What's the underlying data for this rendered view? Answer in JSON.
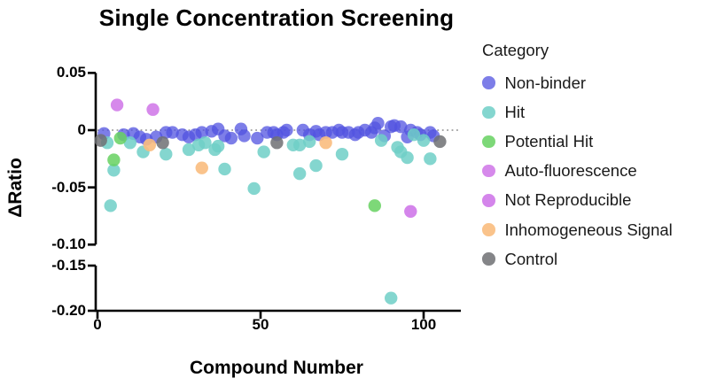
{
  "legend": {
    "title": "Category",
    "items": [
      {
        "label": "Non-binder",
        "color": "#5153E0",
        "opacity": 0.75
      },
      {
        "label": "Hit",
        "color": "#6FCFC7",
        "opacity": 0.85
      },
      {
        "label": "Potential Hit",
        "color": "#66D160",
        "opacity": 0.85
      },
      {
        "label": "Auto-fluorescence",
        "color": "#CF74E8",
        "opacity": 0.85
      },
      {
        "label": "Not Reproducible",
        "color": "#CC70E8",
        "opacity": 0.85
      },
      {
        "label": "Inhomogeneous Signal",
        "color": "#F9BC7E",
        "opacity": 0.9
      },
      {
        "label": "Control",
        "color": "#6F7073",
        "opacity": 0.85
      }
    ]
  },
  "chart_data": {
    "type": "scatter",
    "title": "Single Concentration Screening",
    "xlabel": "Compound Number",
    "ylabel": "ΔRatio",
    "xlim": [
      0,
      111
    ],
    "x_ticks": {
      "labels": [
        "0",
        "50",
        "100"
      ],
      "values": [
        0,
        50,
        100
      ]
    },
    "y_ticks": {
      "labels": [
        "0.05",
        "0",
        "-0.05",
        "-0.10",
        "-0.15",
        "-0.20"
      ],
      "values": [
        0.05,
        0,
        -0.05,
        -0.1,
        -0.15,
        -0.2
      ]
    },
    "axis_break": {
      "between": [
        -0.1,
        -0.15
      ]
    },
    "zero_reference_line": 0,
    "grid": false,
    "legend_position": "right",
    "series": [
      {
        "name": "Non-binder",
        "color": "#5153E0",
        "opacity": 0.75,
        "points": [
          [
            2,
            -0.003
          ],
          [
            8,
            -0.004
          ],
          [
            11,
            -0.003
          ],
          [
            13,
            -0.006
          ],
          [
            15,
            -0.008
          ],
          [
            18,
            -0.006
          ],
          [
            21,
            -0.002
          ],
          [
            23,
            -0.002
          ],
          [
            26,
            -0.004
          ],
          [
            28,
            -0.006
          ],
          [
            30,
            -0.004
          ],
          [
            32,
            -0.002
          ],
          [
            35,
            -0.001
          ],
          [
            37,
            0.001
          ],
          [
            39,
            -0.005
          ],
          [
            41,
            -0.007
          ],
          [
            44,
            0.001
          ],
          [
            45,
            -0.005
          ],
          [
            49,
            -0.007
          ],
          [
            52,
            -0.002
          ],
          [
            54,
            -0.002
          ],
          [
            55,
            -0.004
          ],
          [
            57,
            -0.002
          ],
          [
            58,
            0
          ],
          [
            63,
            0
          ],
          [
            65,
            -0.004
          ],
          [
            67,
            -0.001
          ],
          [
            68,
            -0.004
          ],
          [
            70,
            -0.002
          ],
          [
            72,
            -0.002
          ],
          [
            74,
            0
          ],
          [
            75,
            -0.002
          ],
          [
            77,
            -0.002
          ],
          [
            79,
            -0.004
          ],
          [
            80,
            -0.002
          ],
          [
            82,
            0
          ],
          [
            84,
            -0.002
          ],
          [
            85,
            0.002
          ],
          [
            86,
            0.006
          ],
          [
            88,
            -0.005
          ],
          [
            90,
            0.003
          ],
          [
            91,
            0.004
          ],
          [
            93,
            0.003
          ],
          [
            95,
            -0.006
          ],
          [
            96,
            0
          ],
          [
            98,
            -0.002
          ],
          [
            99,
            -0.004
          ],
          [
            102,
            -0.002
          ],
          [
            103,
            -0.005
          ]
        ]
      },
      {
        "name": "Hit",
        "color": "#6FCFC7",
        "opacity": 0.85,
        "points": [
          [
            3,
            -0.011
          ],
          [
            4,
            -0.066
          ],
          [
            5,
            -0.035
          ],
          [
            10,
            -0.011
          ],
          [
            14,
            -0.019
          ],
          [
            21,
            -0.021
          ],
          [
            28,
            -0.017
          ],
          [
            31,
            -0.013
          ],
          [
            33,
            -0.011
          ],
          [
            36,
            -0.017
          ],
          [
            37,
            -0.014
          ],
          [
            39,
            -0.034
          ],
          [
            48,
            -0.051
          ],
          [
            51,
            -0.019
          ],
          [
            60,
            -0.013
          ],
          [
            62,
            -0.013
          ],
          [
            62,
            -0.038
          ],
          [
            65,
            -0.01
          ],
          [
            67,
            -0.031
          ],
          [
            75,
            -0.021
          ],
          [
            87,
            -0.009
          ],
          [
            92,
            -0.015
          ],
          [
            93,
            -0.019
          ],
          [
            95,
            -0.024
          ],
          [
            97,
            -0.004
          ],
          [
            100,
            -0.009
          ],
          [
            102,
            -0.025
          ],
          [
            90,
            -0.186
          ]
        ]
      },
      {
        "name": "Potential Hit",
        "color": "#66D160",
        "opacity": 0.85,
        "points": [
          [
            5,
            -0.026
          ],
          [
            7,
            -0.007
          ],
          [
            85,
            -0.066
          ]
        ]
      },
      {
        "name": "Auto-fluorescence",
        "color": "#CF74E8",
        "opacity": 0.85,
        "points": [
          [
            6,
            0.022
          ],
          [
            17,
            0.018
          ]
        ]
      },
      {
        "name": "Not Reproducible",
        "color": "#CC70E8",
        "opacity": 0.85,
        "points": [
          [
            96,
            -0.071
          ]
        ]
      },
      {
        "name": "Inhomogeneous Signal",
        "color": "#F9BC7E",
        "opacity": 0.9,
        "points": [
          [
            16,
            -0.013
          ],
          [
            32,
            -0.033
          ],
          [
            70,
            -0.011
          ]
        ]
      },
      {
        "name": "Control",
        "color": "#6F7073",
        "opacity": 0.85,
        "points": [
          [
            1,
            -0.009
          ],
          [
            20,
            -0.011
          ],
          [
            55,
            -0.011
          ],
          [
            105,
            -0.01
          ]
        ]
      }
    ]
  }
}
